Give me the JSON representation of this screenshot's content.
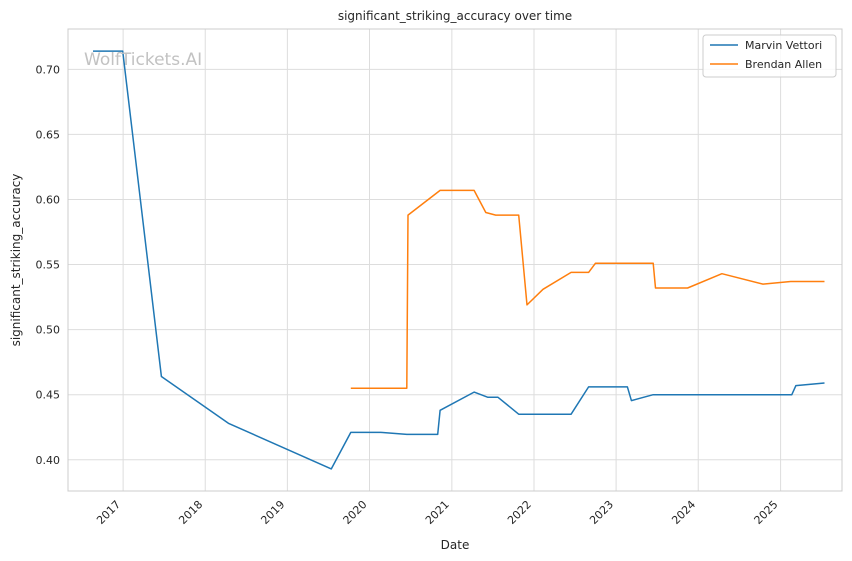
{
  "chart_data": {
    "type": "line",
    "title": "significant_striking_accuracy over time",
    "xlabel": "Date",
    "ylabel": "significant_striking_accuracy",
    "watermark": "WolfTickets.AI",
    "xlim": [
      "2016-05-01",
      "2025-10-01"
    ],
    "ylim": [
      0.376,
      0.731
    ],
    "x_ticks": [
      "2017",
      "2018",
      "2019",
      "2020",
      "2021",
      "2022",
      "2023",
      "2024",
      "2025"
    ],
    "y_ticks": [
      "0.40",
      "0.45",
      "0.50",
      "0.55",
      "0.60",
      "0.65",
      "0.70"
    ],
    "grid": true,
    "legend_position": "top-right",
    "colors": {
      "Marvin Vettori": "#1f77b4",
      "Brendan Allen": "#ff7f0e"
    },
    "series": [
      {
        "name": "Marvin Vettori",
        "x": [
          "2016-08-20",
          "2016-12-30",
          "2017-06-20",
          "2018-04-14",
          "2019-07-15",
          "2019-10-10",
          "2020-02-20",
          "2020-06-15",
          "2020-10-30",
          "2020-11-10",
          "2021-04-10",
          "2021-06-10",
          "2021-07-25",
          "2021-10-25",
          "2022-03-01",
          "2022-06-15",
          "2022-09-01",
          "2023-02-20",
          "2023-03-10",
          "2023-06-15",
          "2024-01-01",
          "2024-06-01",
          "2025-02-20",
          "2025-03-10",
          "2025-07-15"
        ],
        "values": [
          0.714,
          0.714,
          0.464,
          0.428,
          0.393,
          0.421,
          0.421,
          0.4195,
          0.4195,
          0.438,
          0.452,
          0.448,
          0.448,
          0.435,
          0.435,
          0.435,
          0.456,
          0.456,
          0.4455,
          0.45,
          0.45,
          0.45,
          0.45,
          0.457,
          0.459
        ]
      },
      {
        "name": "Brendan Allen",
        "x": [
          "2019-10-10",
          "2020-02-20",
          "2020-06-15",
          "2020-06-20",
          "2020-11-10",
          "2021-03-15",
          "2021-04-10",
          "2021-06-01",
          "2021-07-15",
          "2021-10-25",
          "2021-12-01",
          "2022-02-10",
          "2022-06-15",
          "2022-09-01",
          "2022-10-01",
          "2023-01-01",
          "2023-06-15",
          "2023-06-25",
          "2023-11-15",
          "2024-04-15",
          "2024-10-15",
          "2025-02-15",
          "2025-07-15"
        ],
        "values": [
          0.455,
          0.455,
          0.455,
          0.588,
          0.607,
          0.607,
          0.607,
          0.59,
          0.588,
          0.588,
          0.519,
          0.531,
          0.544,
          0.544,
          0.551,
          0.551,
          0.551,
          0.532,
          0.532,
          0.543,
          0.535,
          0.537,
          0.537
        ]
      }
    ]
  }
}
